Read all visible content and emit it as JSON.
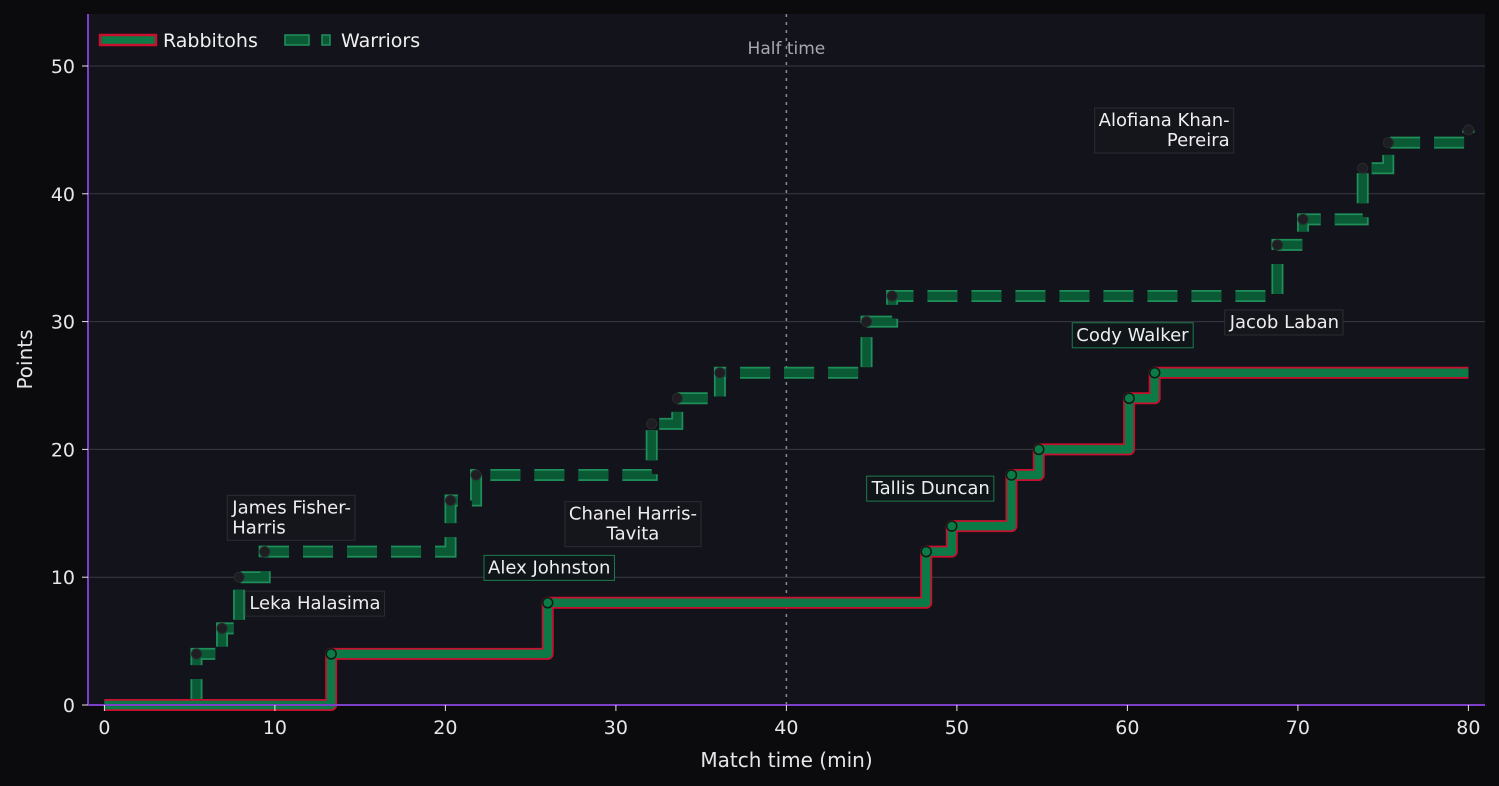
{
  "chart_data": {
    "type": "line",
    "title": "",
    "xlabel": "Match time (min)",
    "ylabel": "Points",
    "xlim": [
      -1,
      81
    ],
    "ylim": [
      0,
      54
    ],
    "x_ticks": [
      0,
      10,
      20,
      30,
      40,
      50,
      60,
      70,
      80
    ],
    "y_ticks": [
      0,
      10,
      20,
      30,
      40,
      50
    ],
    "grid": "horizontal",
    "legend_position": "top-left",
    "half_time": {
      "x": 40,
      "label": "Half time"
    },
    "series": [
      {
        "name": "Rabbitohs",
        "style": "solid",
        "fill_color": "#0b7a47",
        "edge_color": "#c8102e",
        "points": [
          [
            0,
            0
          ],
          [
            13.3,
            4
          ],
          [
            26,
            8
          ],
          [
            48.2,
            12
          ],
          [
            49.7,
            14
          ],
          [
            53.2,
            18
          ],
          [
            54.8,
            20
          ],
          [
            60.1,
            24
          ],
          [
            61.6,
            26
          ],
          [
            80,
            26
          ]
        ]
      },
      {
        "name": "Warriors",
        "style": "dashed",
        "fill_color": "#0b5a36",
        "edge_color": "#1f8f5a",
        "points": [
          [
            0,
            0
          ],
          [
            5.4,
            4
          ],
          [
            6.9,
            6
          ],
          [
            7.9,
            10
          ],
          [
            9.4,
            12
          ],
          [
            20.3,
            16
          ],
          [
            21.8,
            18
          ],
          [
            32.1,
            22
          ],
          [
            33.6,
            24
          ],
          [
            36.1,
            26
          ],
          [
            44.7,
            30
          ],
          [
            46.2,
            32
          ],
          [
            68.8,
            36
          ],
          [
            70.3,
            38
          ],
          [
            73.8,
            42
          ],
          [
            75.3,
            44
          ],
          [
            80,
            45
          ]
        ]
      }
    ],
    "annotations": [
      {
        "text": [
          "Alofiana Khan-",
          "Pereira"
        ],
        "x": 66,
        "y": 45.3,
        "align": "end",
        "box": "dark"
      },
      {
        "text": [
          "Jacob Laban"
        ],
        "x": 66,
        "y": 29.5,
        "align": "start",
        "box": "dark"
      },
      {
        "text": [
          "Cody Walker"
        ],
        "x": 57,
        "y": 28.5,
        "align": "start",
        "box": "green"
      },
      {
        "text": [
          "Tallis Duncan"
        ],
        "x": 45,
        "y": 16.5,
        "align": "start",
        "box": "green"
      },
      {
        "text": [
          "Chanel Harris-",
          "Tavita"
        ],
        "x": 31,
        "y": 14.5,
        "align": "middle",
        "box": "dark"
      },
      {
        "text": [
          "Alex Johnston"
        ],
        "x": 22.5,
        "y": 10.3,
        "align": "start",
        "box": "green"
      },
      {
        "text": [
          "James Fisher-",
          "Harris"
        ],
        "x": 7.5,
        "y": 15,
        "align": "start",
        "box": "dark"
      },
      {
        "text": [
          "Leka Halasima"
        ],
        "x": 8.5,
        "y": 7.5,
        "align": "start",
        "box": "dark"
      }
    ]
  }
}
